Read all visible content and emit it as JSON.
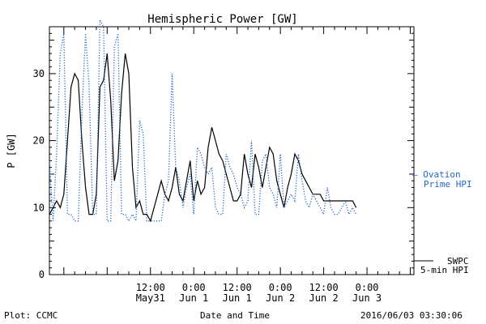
{
  "chart_data": {
    "type": "line",
    "title": "Hemispheric Power [GW]",
    "xlabel": "Date and Time",
    "ylabel": "P [GW]",
    "ylim": [
      0,
      37
    ],
    "xlim_hours": [
      -16,
      85
    ],
    "y_ticks": [
      0,
      10,
      20,
      30
    ],
    "x_ticks": [
      {
        "h": 12,
        "top": "12:00",
        "bottom": "May31"
      },
      {
        "h": 24,
        "top": "0:00",
        "bottom": "Jun 1"
      },
      {
        "h": 36,
        "top": "12:00",
        "bottom": "Jun 1"
      },
      {
        "h": 48,
        "top": "0:00",
        "bottom": "Jun 2"
      },
      {
        "h": 60,
        "top": "12:00",
        "bottom": "Jun 2"
      },
      {
        "h": 72,
        "top": "0:00",
        "bottom": "Jun 3"
      }
    ],
    "legend": {
      "swpc_label_1": "SWPC",
      "swpc_label_2": "5-min HPI",
      "ovation_label_1": "— Ovation",
      "ovation_label_2": "Prime HPI"
    },
    "footer": {
      "left": "Plot: CCMC",
      "right": "2016/06/03 03:30:06"
    },
    "colors": {
      "swpc": "#000000",
      "ovation": "#2266cc"
    },
    "series": [
      {
        "name": "SWPC 5-min HPI",
        "style": "solid",
        "x": [
          0,
          1,
          2,
          3,
          4,
          5,
          6,
          7,
          8,
          9,
          10,
          11,
          12,
          13,
          14,
          15,
          16,
          17,
          18,
          19,
          20,
          21,
          22,
          23,
          24,
          25,
          26,
          27,
          28,
          29,
          30,
          31,
          32,
          33,
          34,
          35,
          36,
          37,
          38,
          39,
          40,
          41,
          42,
          43,
          44,
          45,
          46,
          47,
          48,
          49,
          50,
          51,
          52,
          53,
          54,
          55,
          56,
          57,
          58,
          59,
          60,
          61,
          62,
          63,
          64,
          65,
          66,
          67,
          68,
          69,
          70,
          71,
          72,
          73,
          74,
          75,
          76,
          77,
          78,
          79,
          80,
          81,
          82,
          83,
          84,
          85
        ],
        "y": [
          9,
          10,
          11,
          10,
          12,
          20,
          28,
          30,
          29,
          20,
          13,
          9,
          9,
          12,
          28,
          29,
          33,
          26,
          14,
          17,
          27,
          33,
          30,
          16,
          10,
          11,
          9,
          9,
          8,
          10,
          12,
          14,
          12,
          11,
          13,
          16,
          12,
          11,
          14,
          17,
          11,
          14,
          12,
          13,
          19,
          22,
          20,
          18,
          17,
          15,
          13,
          11,
          11,
          12,
          18,
          15,
          13,
          18,
          16,
          13,
          16,
          19,
          18,
          14,
          12,
          10,
          13,
          15,
          18,
          17,
          15,
          14,
          13,
          12,
          12,
          12,
          11,
          11,
          11,
          11,
          11,
          11,
          11,
          11,
          11,
          10
        ],
        "x_offset_hours": -16
      },
      {
        "name": "Ovation Prime HPI",
        "style": "dotted",
        "x": [
          0,
          1,
          2,
          3,
          4,
          5,
          6,
          7,
          8,
          9,
          10,
          11,
          12,
          13,
          14,
          15,
          16,
          17,
          18,
          19,
          20,
          21,
          22,
          23,
          24,
          25,
          26,
          27,
          28,
          29,
          30,
          31,
          32,
          33,
          34,
          35,
          36,
          37,
          38,
          39,
          40,
          41,
          42,
          43,
          44,
          45,
          46,
          47,
          48,
          49,
          50,
          51,
          52,
          53,
          54,
          55,
          56,
          57,
          58,
          59,
          60,
          61,
          62,
          63,
          64,
          65,
          66,
          67,
          68,
          69,
          70,
          71,
          72,
          73,
          74,
          75,
          76,
          77,
          78,
          79,
          80,
          81,
          82,
          83,
          84,
          85
        ],
        "y": [
          17,
          8,
          18,
          33,
          36,
          9,
          9,
          8,
          8,
          24,
          36,
          28,
          9,
          9,
          38,
          37,
          8,
          8,
          34,
          36,
          9,
          9,
          8,
          9,
          8,
          23,
          21,
          8,
          8,
          8,
          8,
          8,
          12,
          14,
          30,
          16,
          14,
          10,
          13,
          15,
          9,
          19,
          18,
          16,
          15,
          16,
          10,
          9,
          9,
          18,
          16,
          15,
          13,
          12,
          10,
          11,
          20,
          9,
          9,
          17,
          18,
          13,
          12,
          10,
          18,
          10,
          11,
          12,
          11,
          18,
          14,
          11,
          10,
          12,
          11,
          10,
          9,
          13,
          10,
          9,
          9,
          10,
          11,
          9,
          10,
          9
        ],
        "x_offset_hours": -16
      }
    ]
  }
}
